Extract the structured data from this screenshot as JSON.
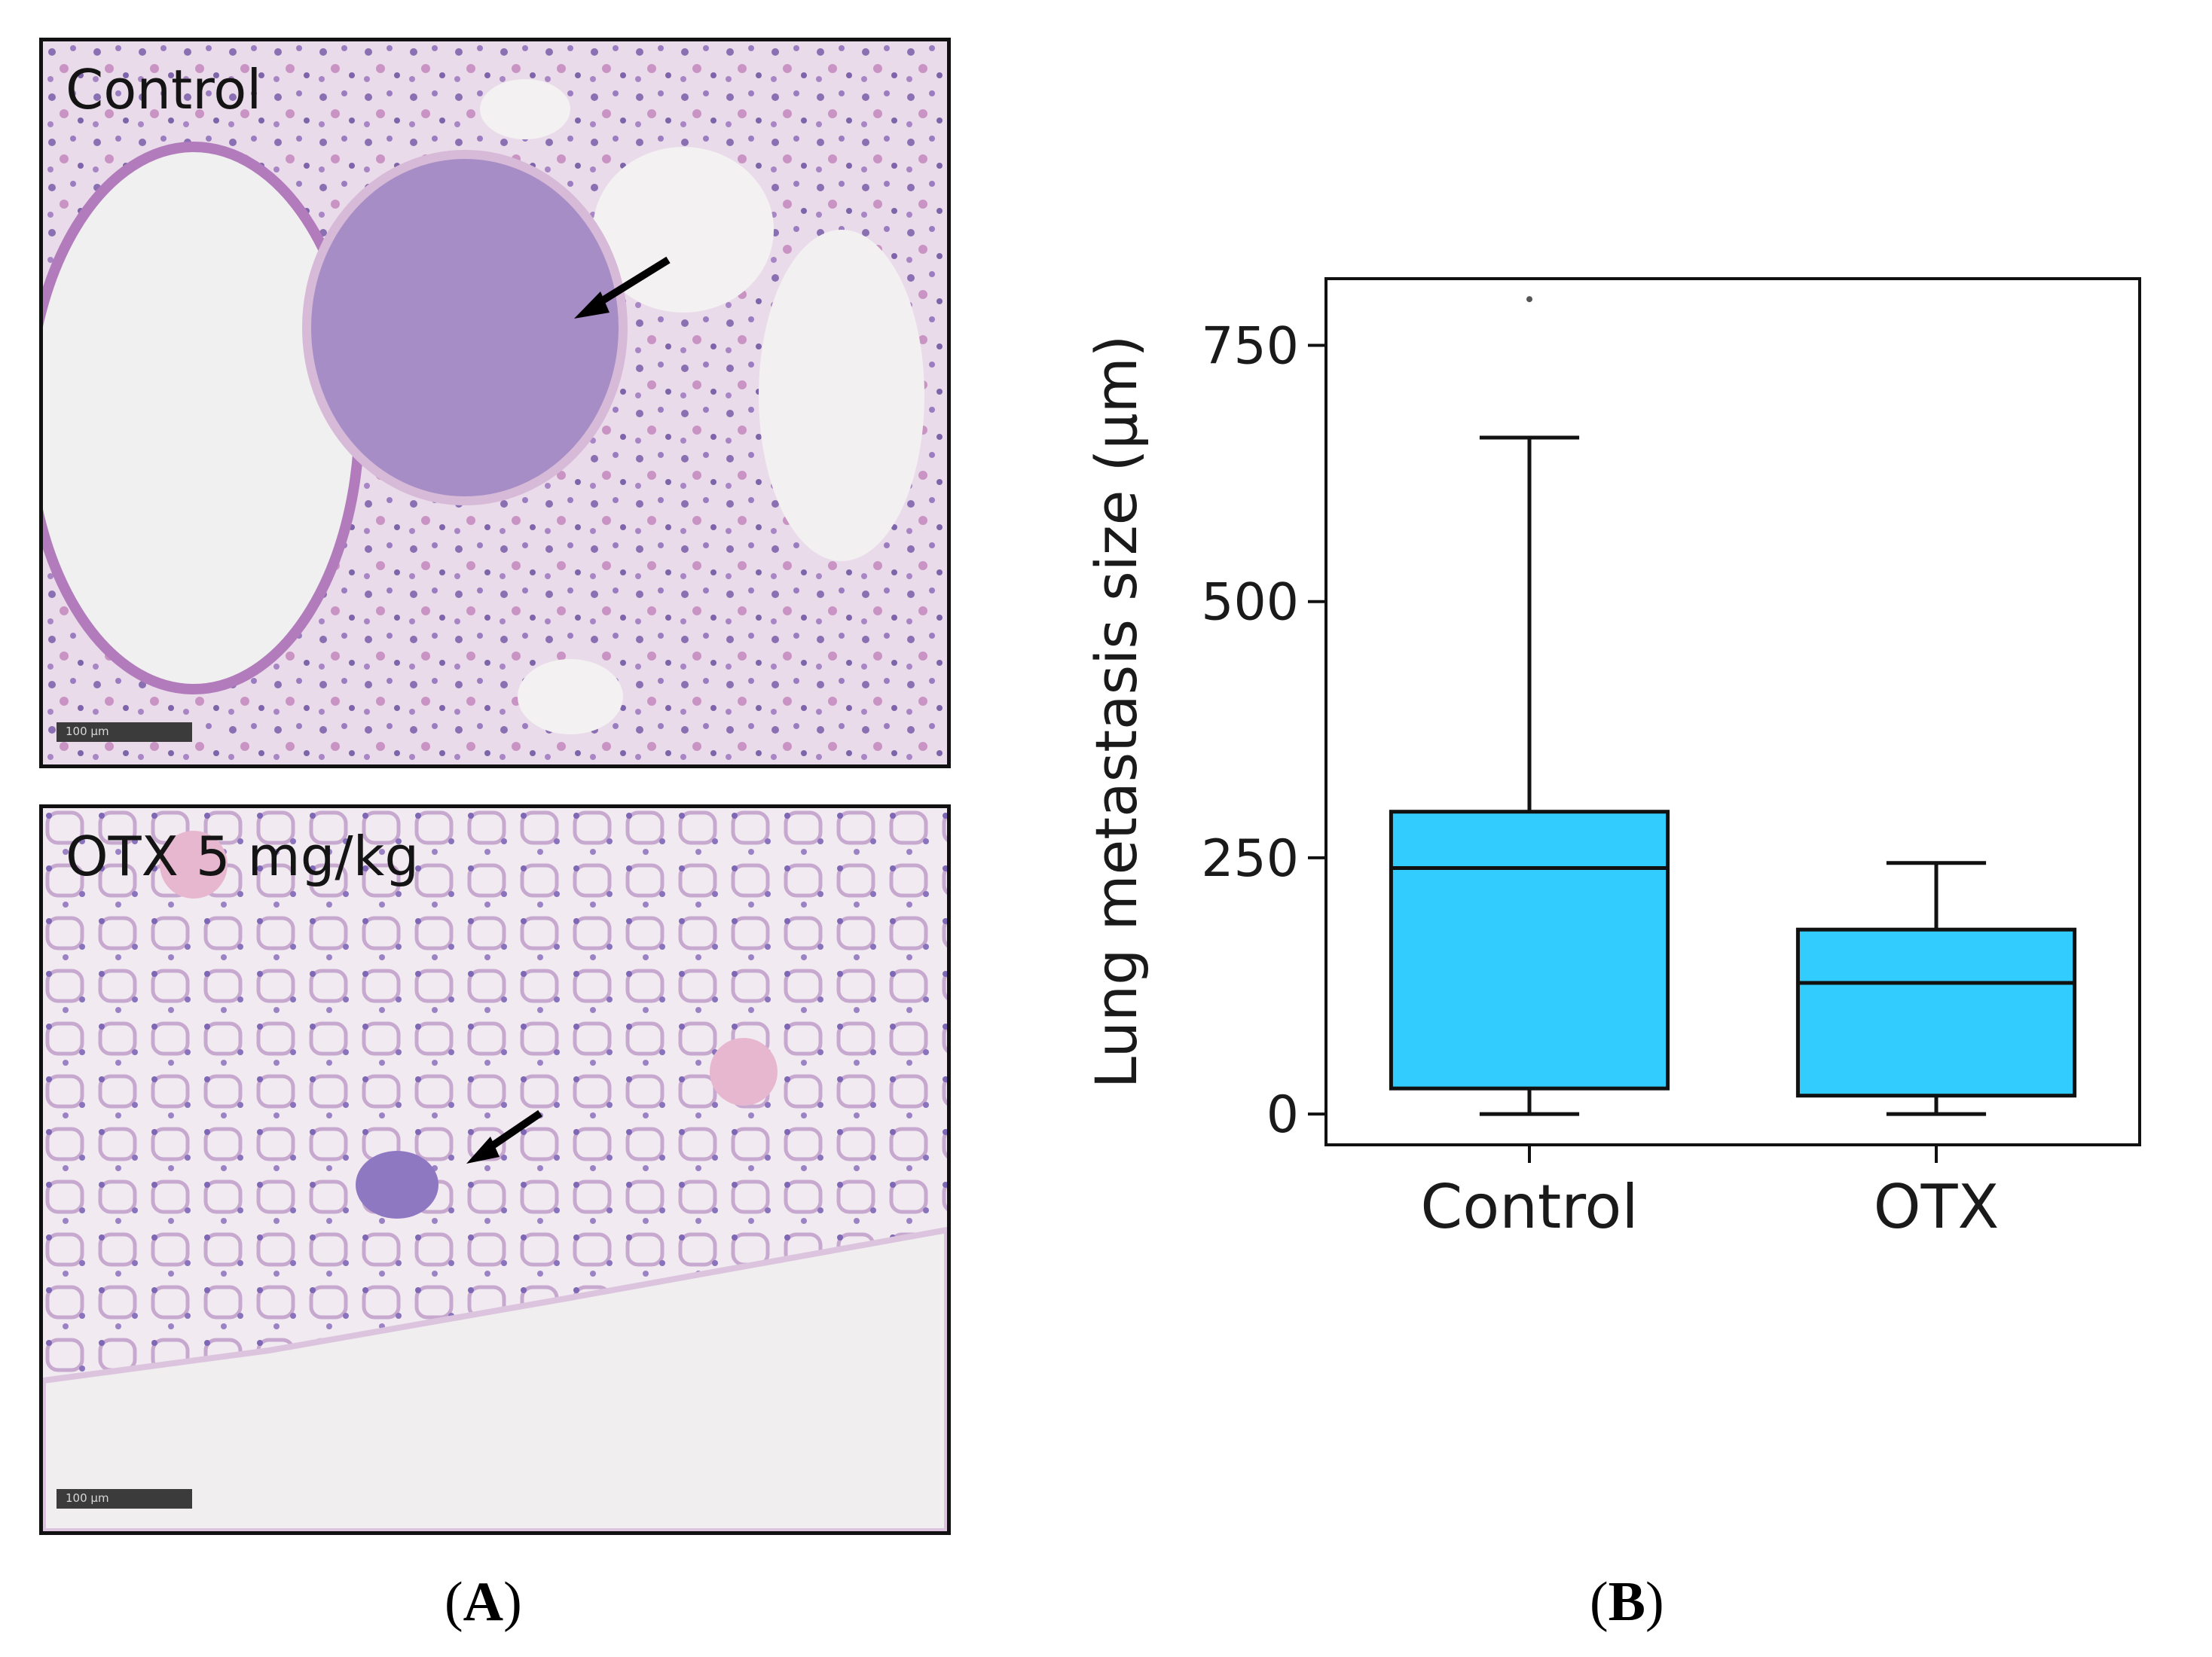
{
  "panels": {
    "a_letter": "A",
    "b_letter": "B",
    "image_top": {
      "label": "Control",
      "scalebar": "100 µm"
    },
    "image_bottom": {
      "label": "OTX 5 mg/kg",
      "scalebar": "100 µm"
    }
  },
  "chart_data": {
    "type": "box",
    "categories": [
      "Control",
      "OTX"
    ],
    "boxes": [
      {
        "category": "Control",
        "whisker_low": 0,
        "q1": 25,
        "median": 240,
        "q3": 295,
        "whisker_high": 660
      },
      {
        "category": "OTX",
        "whisker_low": 0,
        "q1": 18,
        "median": 128,
        "q3": 180,
        "whisker_high": 245
      }
    ],
    "outliers": [
      {
        "category": "Control",
        "value": 795
      }
    ],
    "ylabel": "Lung metastasis size (µm)",
    "yticks": [
      0,
      250,
      500,
      750
    ],
    "ylim": [
      -30,
      815
    ],
    "box_color": "#33ccff",
    "grid": false
  }
}
